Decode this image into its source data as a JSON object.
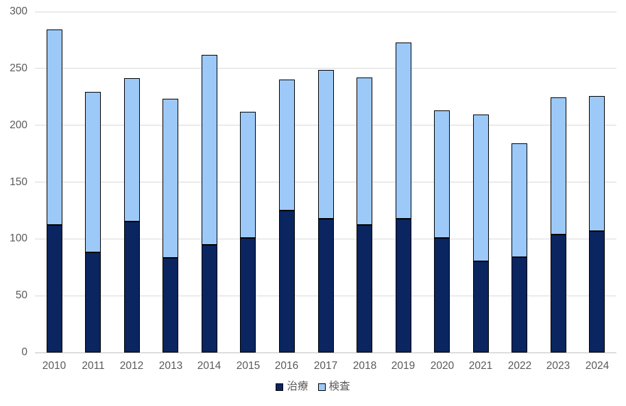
{
  "chart_data": {
    "type": "bar",
    "stacked": true,
    "title": "",
    "xlabel": "",
    "ylabel": "",
    "categories": [
      "2010",
      "2011",
      "2012",
      "2013",
      "2014",
      "2015",
      "2016",
      "2017",
      "2018",
      "2019",
      "2020",
      "2021",
      "2022",
      "2023",
      "2024"
    ],
    "series": [
      {
        "name": "治療",
        "color": "#0a2560",
        "values": [
          112,
          88,
          115,
          83,
          95,
          101,
          125,
          118,
          112,
          118,
          101,
          80,
          84,
          104,
          107
        ]
      },
      {
        "name": "検査",
        "color": "#9cc9f8",
        "values": [
          172,
          141,
          126,
          140,
          167,
          111,
          115,
          131,
          130,
          155,
          112,
          129,
          100,
          121,
          119
        ]
      }
    ],
    "totals": [
      284,
      229,
      241,
      223,
      262,
      212,
      240,
      249,
      242,
      273,
      213,
      209,
      184,
      225,
      226
    ],
    "ylim": [
      0,
      300
    ],
    "ytick_interval": 50,
    "yticks": [
      "0",
      "50",
      "100",
      "150",
      "200",
      "250",
      "300"
    ],
    "grid": true,
    "legend_position": "bottom",
    "colors": {
      "bar_border": "#000000",
      "gridline": "#d9d9d9",
      "axis_line": "#c0c0c0",
      "tick_label": "#595959",
      "background": "#ffffff"
    }
  }
}
